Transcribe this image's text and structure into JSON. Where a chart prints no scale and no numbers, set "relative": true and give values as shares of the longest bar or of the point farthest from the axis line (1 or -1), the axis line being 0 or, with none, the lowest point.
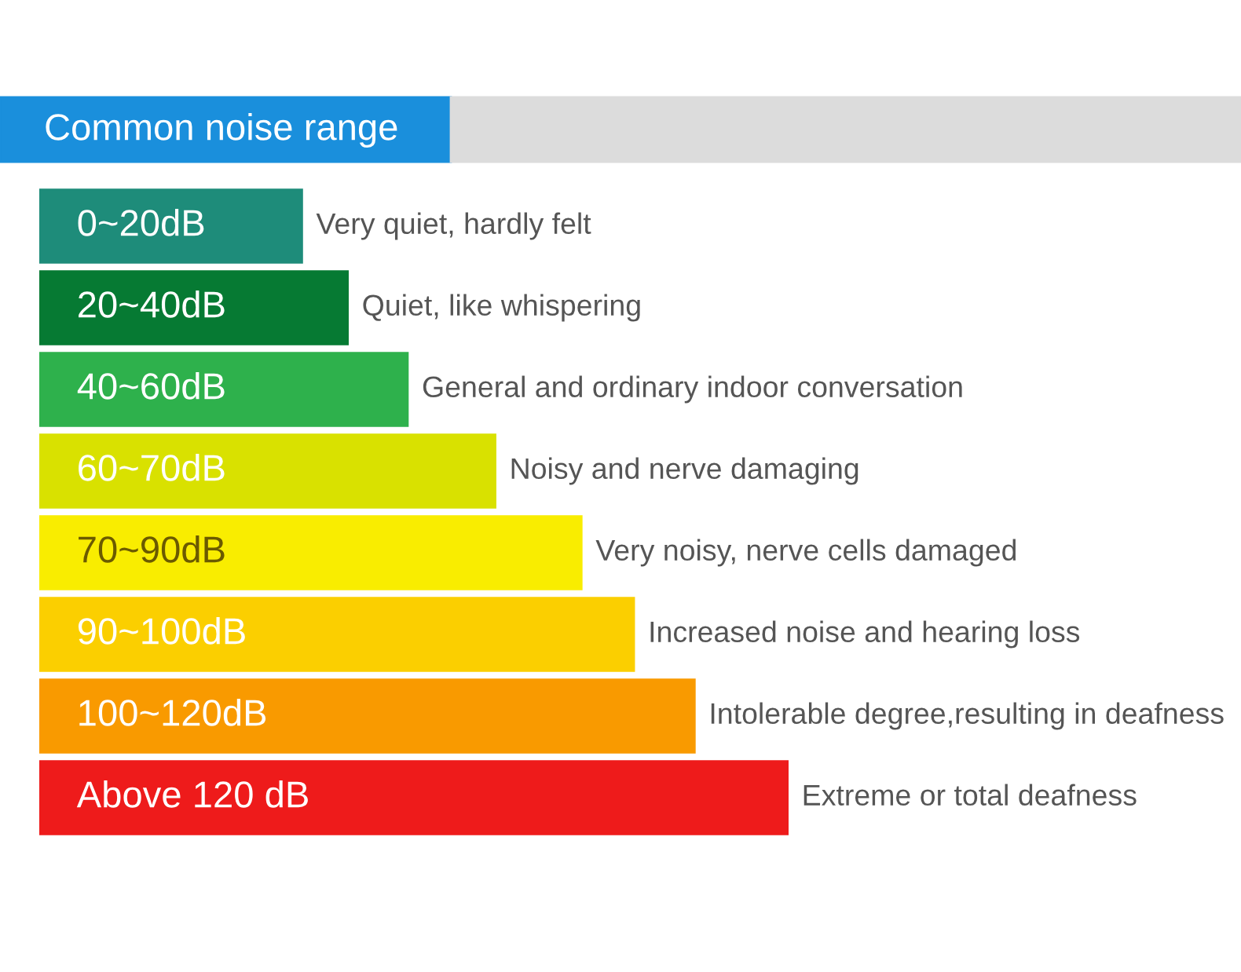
{
  "chart_data": {
    "type": "bar",
    "orientation": "horizontal",
    "relative": true,
    "title": "Common noise range",
    "categories": [
      "0~20dB",
      "20~40dB",
      "40~60dB",
      "60~70dB",
      "70~90dB",
      "90~100dB",
      "100~120dB",
      "Above 120 dB"
    ],
    "values": [
      0.352,
      0.413,
      0.493,
      0.61,
      0.725,
      0.795,
      0.876,
      1
    ],
    "colors": [
      "#1e8c7a",
      "#067a33",
      "#2eb14c",
      "#d9e100",
      "#f9ed00",
      "#fbcf00",
      "#f99a00",
      "#ee1b1b"
    ],
    "annotations": [
      {
        "text": "Very quiet, hardly felt",
        "x": 0.352,
        "y": "0~20dB"
      },
      {
        "text": "Quiet, like whispering",
        "x": 0.413,
        "y": "20~40dB"
      },
      {
        "text": "General and ordinary indoor conversation",
        "x": 0.493,
        "y": "40~60dB"
      },
      {
        "text": "Noisy and nerve damaging",
        "x": 0.61,
        "y": "60~70dB"
      },
      {
        "text": "Very noisy, nerve cells damaged",
        "x": 0.725,
        "y": "70~90dB"
      },
      {
        "text": "Increased noise and hearing loss",
        "x": 0.795,
        "y": "90~100dB"
      },
      {
        "text": "Intolerable degree,resulting in deafness",
        "x": 0.876,
        "y": "100~120dB"
      },
      {
        "text": "Extreme or total deafness",
        "x": 1,
        "y": "Above 120 dB"
      }
    ]
  }
}
